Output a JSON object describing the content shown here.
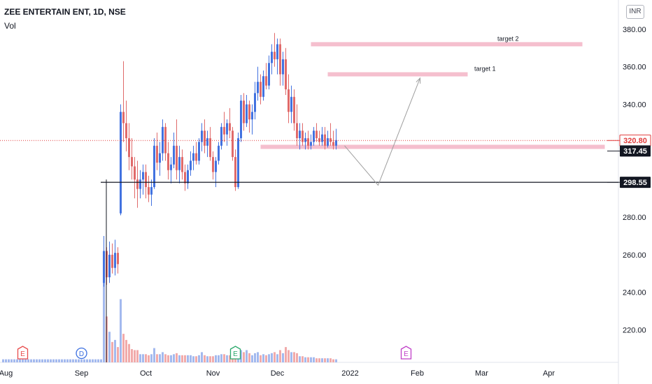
{
  "header": {
    "symbol": "ZEE ENTERTAIN ENT, 1D, NSE",
    "indicator": "Vol",
    "currency": "INR"
  },
  "colors": {
    "up": "#4272e0",
    "down": "#e06a6a",
    "vol_up": "#a3b9ee",
    "vol_down": "#f1aaaa",
    "zone": "#f4b8c9",
    "arrow": "#9e9e9e",
    "last_price": "#e03c3c",
    "grid_text": "#131722"
  },
  "chart_data": {
    "type": "candlestick",
    "y_range": [
      203,
      388
    ],
    "y_ticks": [
      220,
      240,
      260,
      280,
      300,
      320,
      340,
      360,
      380
    ],
    "x_labels": [
      {
        "label": "Aug",
        "bar": 1
      },
      {
        "label": "Sep",
        "bar": 28
      },
      {
        "label": "Oct",
        "bar": 51
      },
      {
        "label": "Nov",
        "bar": 75
      },
      {
        "label": "Dec",
        "bar": 98
      },
      {
        "label": "2022",
        "bar": 124
      },
      {
        "label": "Feb",
        "bar": 148
      },
      {
        "label": "Mar",
        "bar": 171
      },
      {
        "label": "Apr",
        "bar": 195
      }
    ],
    "price_badges": [
      {
        "value": "320.80",
        "price": 320.8,
        "style": "last"
      },
      {
        "value": "317.45",
        "price": 317.45,
        "style": "dark"
      },
      {
        "value": "298.55",
        "price": 298.55,
        "style": "dark"
      }
    ],
    "zones": [
      {
        "label": "target 2",
        "from_bar": 110,
        "to_bar": 207,
        "price": 372
      },
      {
        "label": "target 1",
        "from_bar": 116,
        "to_bar": 166,
        "price": 356
      },
      {
        "label": "",
        "from_bar": 92,
        "to_bar": 215,
        "price": 317.4
      }
    ],
    "hline": {
      "price": 298.55,
      "from_bar": 35,
      "to_bar": 220
    },
    "projection": [
      {
        "bar": 122,
        "price": 318
      },
      {
        "bar": 134,
        "price": 297
      },
      {
        "bar": 149,
        "price": 354
      }
    ],
    "events": [
      {
        "bar": 7,
        "letter": "E",
        "kind": "earnings"
      },
      {
        "bar": 28,
        "letter": "D",
        "kind": "dividend"
      },
      {
        "bar": 83,
        "letter": "E",
        "kind": "earnings"
      },
      {
        "bar": 144,
        "letter": "E",
        "kind": "earnings-future"
      }
    ],
    "candles": [
      [
        206,
        206,
        206,
        206,
        0.03
      ],
      [
        206,
        206,
        206,
        206,
        0.03
      ],
      [
        206,
        206,
        206,
        206,
        0.03
      ],
      [
        206,
        206,
        206,
        206,
        0.03
      ],
      [
        206,
        206,
        206,
        206,
        0.03
      ],
      [
        206,
        206,
        206,
        206,
        0.03
      ],
      [
        206,
        206,
        206,
        206,
        0.03
      ],
      [
        206,
        206,
        206,
        206,
        0.03
      ],
      [
        206,
        206,
        206,
        206,
        0.03
      ],
      [
        206,
        206,
        206,
        206,
        0.03
      ],
      [
        206,
        206,
        206,
        206,
        0.03
      ],
      [
        206,
        206,
        206,
        206,
        0.03
      ],
      [
        206,
        206,
        206,
        206,
        0.03
      ],
      [
        206,
        206,
        206,
        206,
        0.03
      ],
      [
        206,
        206,
        206,
        206,
        0.03
      ],
      [
        206,
        206,
        206,
        206,
        0.03
      ],
      [
        206,
        206,
        206,
        206,
        0.03
      ],
      [
        206,
        206,
        206,
        206,
        0.03
      ],
      [
        206,
        206,
        206,
        206,
        0.03
      ],
      [
        206,
        206,
        206,
        206,
        0.03
      ],
      [
        206,
        206,
        206,
        206,
        0.03
      ],
      [
        206,
        206,
        206,
        206,
        0.03
      ],
      [
        206,
        206,
        206,
        206,
        0.03
      ],
      [
        206,
        206,
        206,
        206,
        0.03
      ],
      [
        206,
        206,
        206,
        206,
        0.03
      ],
      [
        206,
        206,
        206,
        206,
        0.03
      ],
      [
        206,
        206,
        206,
        206,
        0.03
      ],
      [
        206,
        206,
        206,
        206,
        0.03
      ],
      [
        206,
        206,
        206,
        206,
        0.03
      ],
      [
        206,
        206,
        206,
        206,
        0.03
      ],
      [
        206,
        206,
        206,
        206,
        0.03
      ],
      [
        206,
        206,
        206,
        206,
        0.03
      ],
      [
        206,
        206,
        206,
        206,
        0.03
      ],
      [
        206,
        206,
        206,
        206,
        0.03
      ],
      [
        206,
        206,
        206,
        206,
        0.03
      ],
      [
        206,
        206,
        206,
        206,
        0.03
      ],
      [
        245,
        270,
        243,
        262,
        1.0
      ],
      [
        262,
        264,
        244,
        248,
        0.45
      ],
      [
        248,
        267,
        245,
        260,
        0.3
      ],
      [
        260,
        266,
        250,
        253,
        0.2
      ],
      [
        253,
        268,
        249,
        261,
        0.22
      ],
      [
        261,
        264,
        250,
        255,
        0.15
      ],
      [
        282,
        340,
        281,
        336,
        0.62
      ],
      [
        336,
        363,
        320,
        330,
        0.28
      ],
      [
        330,
        342,
        315,
        322,
        0.22
      ],
      [
        322,
        330,
        305,
        312,
        0.18
      ],
      [
        312,
        322,
        300,
        307,
        0.13
      ],
      [
        307,
        312,
        290,
        300,
        0.12
      ],
      [
        300,
        310,
        285,
        295,
        0.12
      ],
      [
        295,
        305,
        290,
        300,
        0.08
      ],
      [
        300,
        308,
        292,
        304,
        0.08
      ],
      [
        304,
        308,
        290,
        296,
        0.08
      ],
      [
        296,
        302,
        288,
        292,
        0.07
      ],
      [
        292,
        300,
        286,
        296,
        0.08
      ],
      [
        296,
        322,
        295,
        318,
        0.14
      ],
      [
        318,
        325,
        305,
        309,
        0.08
      ],
      [
        309,
        320,
        302,
        314,
        0.08
      ],
      [
        314,
        332,
        310,
        328,
        0.1
      ],
      [
        328,
        330,
        310,
        314,
        0.08
      ],
      [
        314,
        320,
        300,
        305,
        0.07
      ],
      [
        305,
        312,
        298,
        308,
        0.07
      ],
      [
        308,
        325,
        306,
        318,
        0.08
      ],
      [
        318,
        332,
        300,
        305,
        0.09
      ],
      [
        305,
        318,
        298,
        312,
        0.07
      ],
      [
        312,
        316,
        300,
        304,
        0.07
      ],
      [
        304,
        308,
        294,
        298,
        0.07
      ],
      [
        298,
        308,
        295,
        305,
        0.07
      ],
      [
        305,
        315,
        302,
        310,
        0.07
      ],
      [
        310,
        318,
        305,
        314,
        0.06
      ],
      [
        314,
        320,
        308,
        310,
        0.06
      ],
      [
        310,
        322,
        308,
        320,
        0.07
      ],
      [
        320,
        330,
        315,
        326,
        0.1
      ],
      [
        326,
        332,
        314,
        318,
        0.07
      ],
      [
        318,
        326,
        312,
        322,
        0.06
      ],
      [
        322,
        328,
        310,
        312,
        0.06
      ],
      [
        312,
        315,
        300,
        304,
        0.06
      ],
      [
        304,
        312,
        296,
        310,
        0.07
      ],
      [
        310,
        320,
        308,
        318,
        0.07
      ],
      [
        318,
        330,
        316,
        328,
        0.08
      ],
      [
        328,
        336,
        320,
        324,
        0.08
      ],
      [
        324,
        332,
        318,
        330,
        0.07
      ],
      [
        330,
        338,
        322,
        326,
        0.07
      ],
      [
        326,
        328,
        310,
        312,
        0.06
      ],
      [
        312,
        316,
        294,
        296,
        0.05
      ],
      [
        296,
        325,
        295,
        322,
        0.08
      ],
      [
        322,
        345,
        320,
        342,
        0.12
      ],
      [
        342,
        346,
        326,
        330,
        0.1
      ],
      [
        330,
        345,
        328,
        340,
        0.12
      ],
      [
        340,
        342,
        325,
        332,
        0.09
      ],
      [
        332,
        340,
        324,
        336,
        0.07
      ],
      [
        336,
        352,
        332,
        346,
        0.09
      ],
      [
        346,
        360,
        342,
        352,
        0.1
      ],
      [
        352,
        356,
        340,
        344,
        0.07
      ],
      [
        344,
        358,
        342,
        355,
        0.08
      ],
      [
        355,
        362,
        348,
        350,
        0.07
      ],
      [
        350,
        366,
        348,
        362,
        0.08
      ],
      [
        362,
        372,
        356,
        368,
        0.09
      ],
      [
        368,
        378,
        360,
        364,
        0.1
      ],
      [
        364,
        375,
        356,
        372,
        0.08
      ],
      [
        372,
        375,
        350,
        356,
        0.12
      ],
      [
        356,
        368,
        350,
        364,
        0.09
      ],
      [
        364,
        370,
        345,
        348,
        0.15
      ],
      [
        348,
        356,
        330,
        336,
        0.12
      ],
      [
        336,
        350,
        330,
        344,
        0.1
      ],
      [
        344,
        348,
        326,
        330,
        0.1
      ],
      [
        330,
        340,
        318,
        322,
        0.09
      ],
      [
        322,
        330,
        316,
        326,
        0.06
      ],
      [
        326,
        330,
        318,
        320,
        0.06
      ],
      [
        320,
        325,
        316,
        322,
        0.05
      ],
      [
        322,
        326,
        316,
        318,
        0.05
      ],
      [
        318,
        324,
        316,
        320,
        0.05
      ],
      [
        320,
        328,
        318,
        326,
        0.05
      ],
      [
        326,
        330,
        320,
        322,
        0.04
      ],
      [
        322,
        326,
        318,
        320,
        0.04
      ],
      [
        320,
        328,
        318,
        324,
        0.04
      ],
      [
        324,
        328,
        316,
        318,
        0.04
      ],
      [
        318,
        326,
        317,
        322,
        0.04
      ],
      [
        322,
        330,
        318,
        320,
        0.04
      ],
      [
        320,
        326,
        316,
        318,
        0.03
      ],
      [
        318,
        327,
        316,
        321,
        0.03
      ]
    ]
  }
}
